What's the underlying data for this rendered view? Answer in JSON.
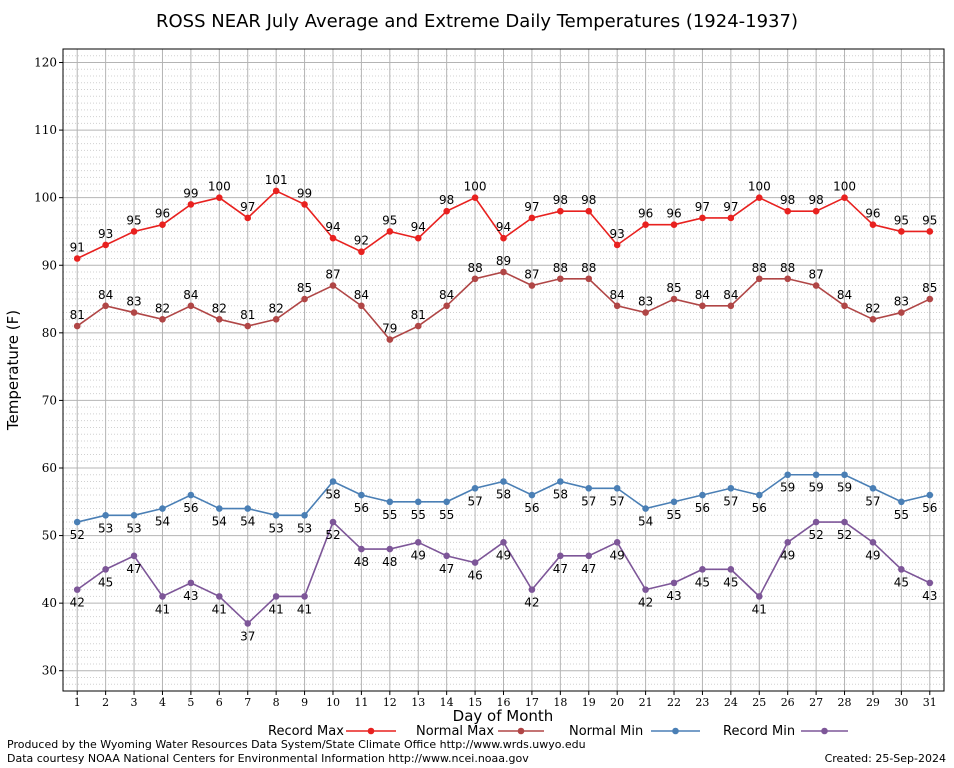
{
  "chart_data": {
    "type": "line",
    "title": "ROSS NEAR July Average and Extreme Daily Temperatures (1924-1937)",
    "xlabel": "Day of Month",
    "ylabel": "Temperature (F)",
    "ylim": [
      27,
      122
    ],
    "yticks": [
      30,
      40,
      50,
      60,
      70,
      80,
      90,
      100,
      110,
      120
    ],
    "grid": true,
    "legend_position": "bottom",
    "x": [
      1,
      2,
      3,
      4,
      5,
      6,
      7,
      8,
      9,
      10,
      11,
      12,
      13,
      14,
      15,
      16,
      17,
      18,
      19,
      20,
      21,
      22,
      23,
      24,
      25,
      26,
      27,
      28,
      29,
      30,
      31
    ],
    "series": [
      {
        "name": "Record Max",
        "color": "#e8211f",
        "label_position": "above",
        "values": [
          91,
          93,
          95,
          96,
          99,
          100,
          97,
          101,
          99,
          94,
          92,
          95,
          94,
          98,
          100,
          94,
          97,
          98,
          98,
          93,
          96,
          96,
          97,
          97,
          100,
          98,
          98,
          100,
          96,
          95,
          95
        ]
      },
      {
        "name": "Normal Max",
        "color": "#b04646",
        "label_position": "above",
        "values": [
          81,
          84,
          83,
          82,
          84,
          82,
          81,
          82,
          85,
          87,
          84,
          79,
          81,
          84,
          88,
          89,
          87,
          88,
          88,
          84,
          83,
          85,
          84,
          84,
          88,
          88,
          87,
          84,
          82,
          83,
          85
        ]
      },
      {
        "name": "Normal Min",
        "color": "#4a7fb5",
        "label_position": "below",
        "values": [
          52,
          53,
          53,
          54,
          56,
          54,
          54,
          53,
          53,
          58,
          56,
          55,
          55,
          55,
          57,
          58,
          56,
          58,
          57,
          57,
          54,
          55,
          56,
          57,
          56,
          59,
          59,
          59,
          57,
          55,
          56
        ]
      },
      {
        "name": "Record Min",
        "color": "#7d5698",
        "label_position": "below",
        "values": [
          42,
          45,
          47,
          41,
          43,
          41,
          37,
          41,
          41,
          52,
          48,
          48,
          49,
          47,
          46,
          49,
          42,
          47,
          47,
          49,
          42,
          43,
          45,
          45,
          41,
          49,
          52,
          52,
          49,
          45,
          43
        ]
      }
    ]
  },
  "footer": {
    "produced_by": "Produced by the Wyoming Water Resources Data System/State Climate Office http://www.wrds.uwyo.edu",
    "courtesy": "Data courtesy NOAA National Centers for Environmental Information http://www.ncei.noaa.gov",
    "created": "Created:  25-Sep-2024"
  }
}
